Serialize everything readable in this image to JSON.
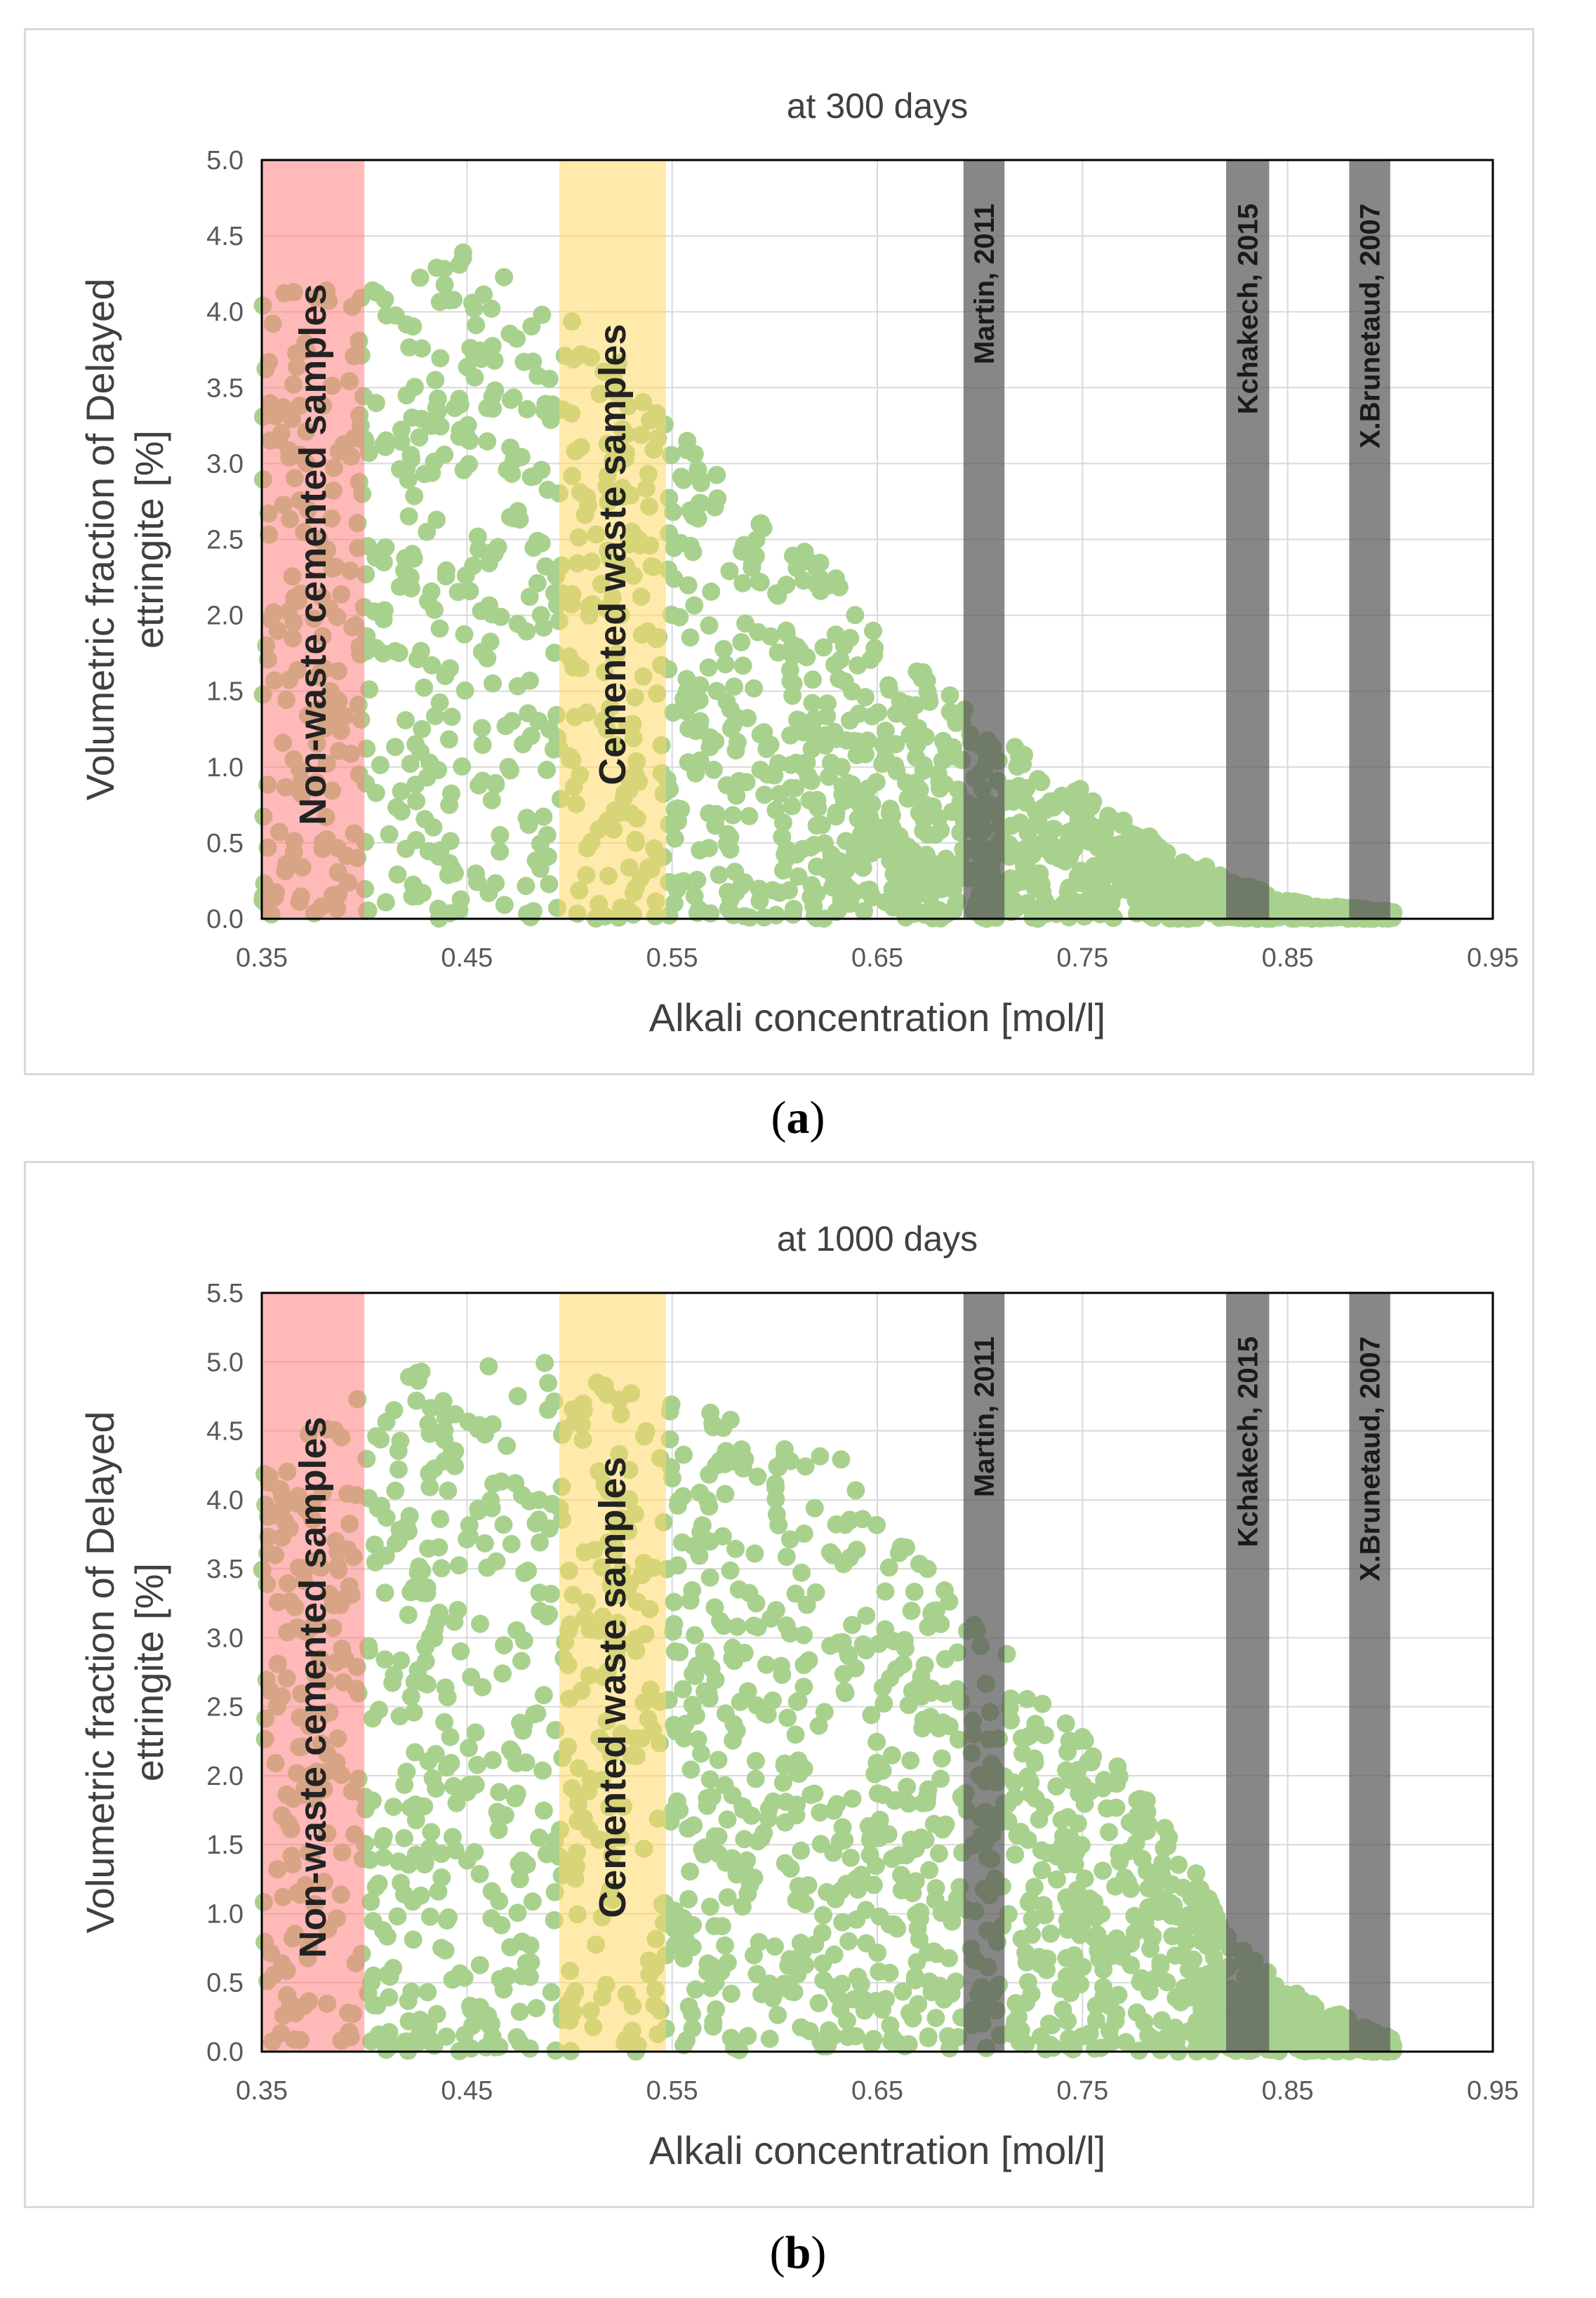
{
  "figure": {
    "panels": [
      {
        "caption_label": "a"
      },
      {
        "caption_label": "b"
      }
    ]
  },
  "chart_data": [
    {
      "type": "scatter",
      "title": "at 300 days",
      "xlabel": "Alkali concentration  [mol/l]",
      "ylabel_line1": "Volumetric fraction of Delayed",
      "ylabel_line2": "ettringite [%]",
      "xlim": [
        0.35,
        0.95
      ],
      "ylim": [
        0,
        5.0
      ],
      "x_ticks": [
        0.35,
        0.45,
        0.55,
        0.65,
        0.75,
        0.85,
        0.95
      ],
      "x_tick_labels": [
        "0.35",
        "0.45",
        "0.55",
        "0.65",
        "0.75",
        "0.85",
        "0.95"
      ],
      "y_ticks": [
        0,
        0.5,
        1.0,
        1.5,
        2.0,
        2.5,
        3.0,
        3.5,
        4.0,
        4.5,
        5.0
      ],
      "y_tick_labels": [
        "0.0",
        "0.5",
        "1.0",
        "1.5",
        "2.0",
        "2.5",
        "3.0",
        "3.5",
        "4.0",
        "4.5",
        "5.0"
      ],
      "grid": true,
      "point_color": "#a9d18e",
      "bands": [
        {
          "label": "Non-waste cemented samples",
          "x0": 0.35,
          "x1": 0.4,
          "color": "#ff8080"
        },
        {
          "label": "Cemented waste samples",
          "x0": 0.495,
          "x1": 0.547,
          "color": "#ffd966"
        }
      ],
      "reference_lines": [
        {
          "label": "Martin, 2011",
          "x0": 0.692,
          "x1": 0.712,
          "color": "#595959"
        },
        {
          "label": "Kchakech, 2015",
          "x0": 0.82,
          "x1": 0.841,
          "color": "#595959"
        },
        {
          "label": "X.Brunetaud, 2007",
          "x0": 0.88,
          "x1": 0.9,
          "color": "#595959"
        }
      ],
      "envelope": [
        [
          0.35,
          4.1
        ],
        [
          0.4,
          4.3
        ],
        [
          0.45,
          4.4
        ],
        [
          0.5,
          4.0
        ],
        [
          0.55,
          3.3
        ],
        [
          0.6,
          2.6
        ],
        [
          0.63,
          2.3
        ],
        [
          0.65,
          1.9
        ],
        [
          0.7,
          1.3
        ],
        [
          0.75,
          0.85
        ],
        [
          0.8,
          0.4
        ],
        [
          0.85,
          0.12
        ],
        [
          0.9,
          0.05
        ]
      ],
      "seed": 300,
      "point_count": 1700
    },
    {
      "type": "scatter",
      "title": "at 1000 days",
      "xlabel": "Alkali concentration  [mol/l]",
      "ylabel_line1": "Volumetric fraction of Delayed",
      "ylabel_line2": "ettringite [%]",
      "xlim": [
        0.35,
        0.95
      ],
      "ylim": [
        0,
        5.5
      ],
      "x_ticks": [
        0.35,
        0.45,
        0.55,
        0.65,
        0.75,
        0.85,
        0.95
      ],
      "x_tick_labels": [
        "0.35",
        "0.45",
        "0.55",
        "0.65",
        "0.75",
        "0.85",
        "0.95"
      ],
      "y_ticks": [
        0,
        0.5,
        1.0,
        1.5,
        2.0,
        2.5,
        3.0,
        3.5,
        4.0,
        4.5,
        5.0,
        5.5
      ],
      "y_tick_labels": [
        "0.0",
        "0.5",
        "1.0",
        "1.5",
        "2.0",
        "2.5",
        "3.0",
        "3.5",
        "4.0",
        "4.5",
        "5.0",
        "5.5"
      ],
      "grid": true,
      "point_color": "#a9d18e",
      "bands": [
        {
          "label": "Non-waste cemented samples",
          "x0": 0.35,
          "x1": 0.4,
          "color": "#ff8080"
        },
        {
          "label": "Cemented waste samples",
          "x0": 0.495,
          "x1": 0.547,
          "color": "#ffd966"
        }
      ],
      "reference_lines": [
        {
          "label": "Martin, 2011",
          "x0": 0.692,
          "x1": 0.712,
          "color": "#595959"
        },
        {
          "label": "Kchakech, 2015",
          "x0": 0.82,
          "x1": 0.841,
          "color": "#595959"
        },
        {
          "label": "X.Brunetaud, 2007",
          "x0": 0.88,
          "x1": 0.9,
          "color": "#595959"
        }
      ],
      "envelope": [
        [
          0.35,
          4.5
        ],
        [
          0.4,
          4.9
        ],
        [
          0.45,
          5.0
        ],
        [
          0.5,
          5.0
        ],
        [
          0.55,
          4.9
        ],
        [
          0.6,
          4.5
        ],
        [
          0.63,
          4.4
        ],
        [
          0.65,
          3.9
        ],
        [
          0.7,
          3.1
        ],
        [
          0.75,
          2.4
        ],
        [
          0.8,
          1.5
        ],
        [
          0.82,
          0.85
        ],
        [
          0.85,
          0.45
        ],
        [
          0.9,
          0.1
        ]
      ],
      "seed": 1000,
      "point_count": 1800
    }
  ]
}
